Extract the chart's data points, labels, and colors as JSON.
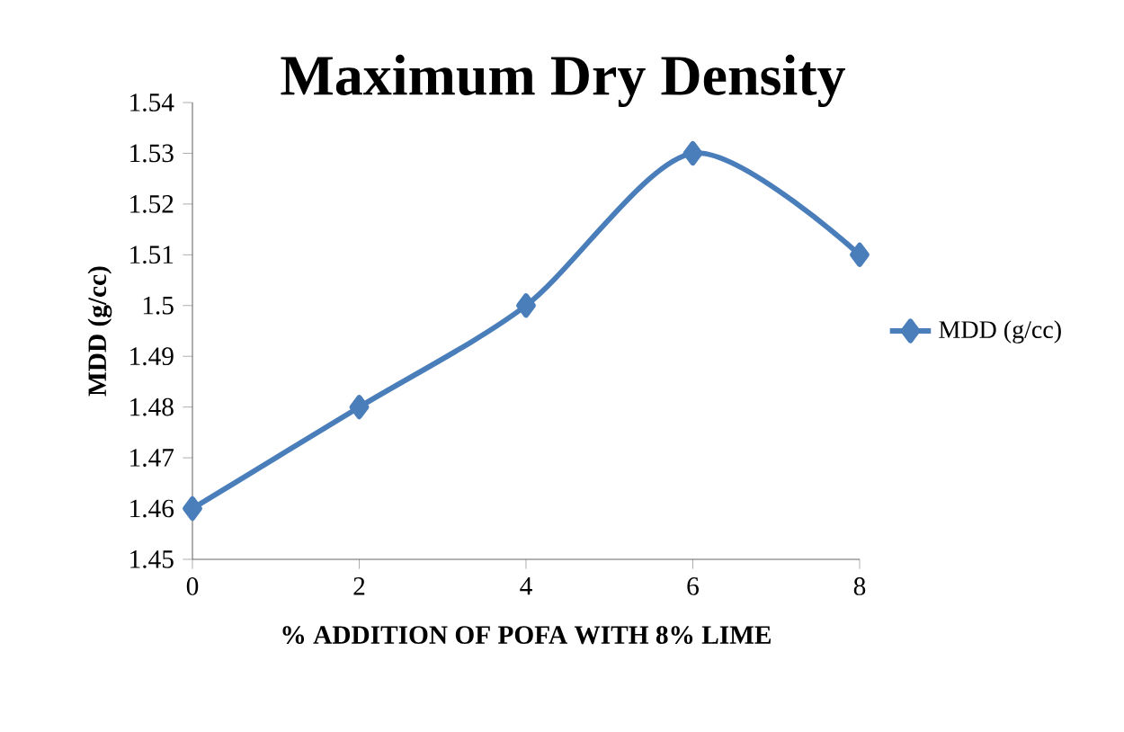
{
  "chart_data": {
    "type": "line",
    "title": "Maximum Dry Density",
    "xlabel": "% ADDITION OF POFA WITH 8% LIME",
    "ylabel": "MDD (g/cc)",
    "x": [
      0,
      2,
      4,
      6,
      8
    ],
    "series": [
      {
        "name": "MDD (g/cc)",
        "color": "#4a7ebb",
        "values": [
          1.46,
          1.48,
          1.5,
          1.53,
          1.51
        ]
      }
    ],
    "xlim": [
      0,
      8
    ],
    "xticks": [
      0,
      2,
      4,
      6,
      8
    ],
    "ylim": [
      1.45,
      1.54
    ],
    "yticks": [
      1.45,
      1.46,
      1.47,
      1.48,
      1.49,
      {
        "value": 1.5,
        "label": "1.5"
      },
      1.51,
      1.52,
      1.53,
      1.54
    ],
    "grid": false,
    "legend": "right",
    "marker": "diamond",
    "line_style": "solid"
  }
}
